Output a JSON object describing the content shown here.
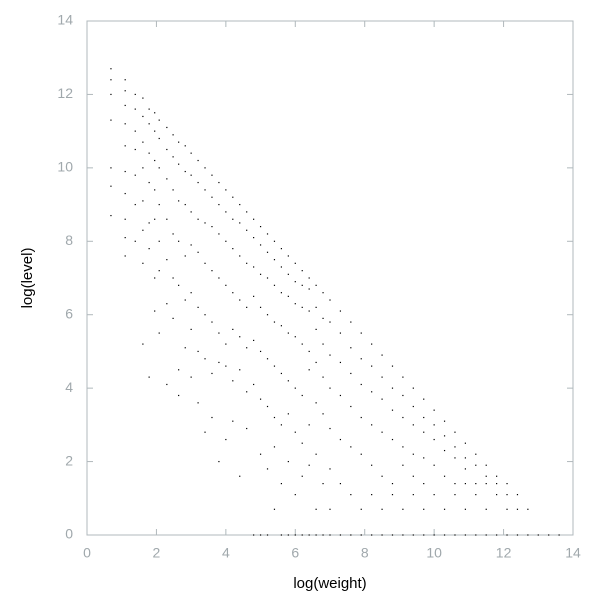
{
  "chart_data": {
    "type": "scatter",
    "xlabel": "log(weight)",
    "ylabel": "log(level)",
    "xlim": [
      0,
      14
    ],
    "ylim": [
      0,
      14
    ],
    "xticks": [
      0,
      2,
      4,
      6,
      8,
      10,
      12,
      14
    ],
    "yticks": [
      0,
      2,
      4,
      6,
      8,
      10,
      12,
      14
    ],
    "color": "#000000",
    "x": [
      0.69,
      0.69,
      0.69,
      0.69,
      0.69,
      0.69,
      0.69,
      1.1,
      1.1,
      1.1,
      1.1,
      1.1,
      1.1,
      1.1,
      1.1,
      1.1,
      1.1,
      1.39,
      1.39,
      1.39,
      1.39,
      1.39,
      1.39,
      1.39,
      1.61,
      1.61,
      1.61,
      1.61,
      1.61,
      1.61,
      1.61,
      1.61,
      1.79,
      1.79,
      1.79,
      1.79,
      1.79,
      1.79,
      1.79,
      1.95,
      1.95,
      1.95,
      1.95,
      1.95,
      1.95,
      1.95,
      2.08,
      2.08,
      2.08,
      2.08,
      2.08,
      2.08,
      2.08,
      2.3,
      2.3,
      2.3,
      2.3,
      2.3,
      2.3,
      2.3,
      2.48,
      2.48,
      2.48,
      2.48,
      2.48,
      2.48,
      2.64,
      2.64,
      2.64,
      2.64,
      2.64,
      2.64,
      2.64,
      2.83,
      2.83,
      2.83,
      2.83,
      2.83,
      2.83,
      3.0,
      3.0,
      3.0,
      3.0,
      3.0,
      3.0,
      3.0,
      3.2,
      3.2,
      3.2,
      3.2,
      3.2,
      3.2,
      3.2,
      3.4,
      3.4,
      3.4,
      3.4,
      3.4,
      3.4,
      3.4,
      3.6,
      3.6,
      3.6,
      3.6,
      3.6,
      3.6,
      3.6,
      3.8,
      3.8,
      3.8,
      3.8,
      3.8,
      3.8,
      3.8,
      4.0,
      4.0,
      4.0,
      4.0,
      4.0,
      4.0,
      4.0,
      4.2,
      4.2,
      4.2,
      4.2,
      4.2,
      4.2,
      4.2,
      4.4,
      4.4,
      4.4,
      4.4,
      4.4,
      4.4,
      4.4,
      4.6,
      4.6,
      4.6,
      4.6,
      4.6,
      4.6,
      4.6,
      4.8,
      4.8,
      4.8,
      4.8,
      4.8,
      4.8,
      4.8,
      5.0,
      5.0,
      5.0,
      5.0,
      5.0,
      5.0,
      5.0,
      5.0,
      5.2,
      5.2,
      5.2,
      5.2,
      5.2,
      5.2,
      5.2,
      5.2,
      5.4,
      5.4,
      5.4,
      5.4,
      5.4,
      5.4,
      5.4,
      5.4,
      5.6,
      5.6,
      5.6,
      5.6,
      5.6,
      5.6,
      5.6,
      5.6,
      5.8,
      5.8,
      5.8,
      5.8,
      5.8,
      5.8,
      5.8,
      5.8,
      6.0,
      6.0,
      6.0,
      6.0,
      6.0,
      6.0,
      6.0,
      6.0,
      6.2,
      6.2,
      6.2,
      6.2,
      6.2,
      6.2,
      6.2,
      6.2,
      6.4,
      6.4,
      6.4,
      6.4,
      6.4,
      6.4,
      6.4,
      6.4,
      6.6,
      6.6,
      6.6,
      6.6,
      6.6,
      6.6,
      6.6,
      6.6,
      6.8,
      6.8,
      6.8,
      6.8,
      6.8,
      6.8,
      6.8,
      7.0,
      7.0,
      7.0,
      7.0,
      7.0,
      7.0,
      7.0,
      7.0,
      7.3,
      7.3,
      7.3,
      7.3,
      7.3,
      7.3,
      7.3,
      7.6,
      7.6,
      7.6,
      7.6,
      7.6,
      7.6,
      7.6,
      7.9,
      7.9,
      7.9,
      7.9,
      7.9,
      7.9,
      7.9,
      8.2,
      8.2,
      8.2,
      8.2,
      8.2,
      8.2,
      8.2,
      8.5,
      8.5,
      8.5,
      8.5,
      8.5,
      8.5,
      8.5,
      8.8,
      8.8,
      8.8,
      8.8,
      8.8,
      8.8,
      8.8,
      9.1,
      9.1,
      9.1,
      9.1,
      9.1,
      9.1,
      9.1,
      9.4,
      9.4,
      9.4,
      9.4,
      9.4,
      9.4,
      9.4,
      9.7,
      9.7,
      9.7,
      9.7,
      9.7,
      9.7,
      9.7,
      10.0,
      10.0,
      10.0,
      10.0,
      10.0,
      10.0,
      10.3,
      10.3,
      10.3,
      10.3,
      10.3,
      10.3,
      10.6,
      10.6,
      10.6,
      10.6,
      10.6,
      10.6,
      10.9,
      10.9,
      10.9,
      10.9,
      10.9,
      10.9,
      11.2,
      11.2,
      11.2,
      11.2,
      11.2,
      11.5,
      11.5,
      11.5,
      11.5,
      11.5,
      11.8,
      11.8,
      11.8,
      11.8,
      12.1,
      12.1,
      12.1,
      12.1,
      12.4,
      12.4,
      12.4,
      12.7,
      12.7,
      13.0,
      13.3,
      13.6
    ],
    "values": [
      12.7,
      12.4,
      12.0,
      11.3,
      10.0,
      9.5,
      8.7,
      12.4,
      12.1,
      11.7,
      11.2,
      10.6,
      9.9,
      9.3,
      8.6,
      8.1,
      7.6,
      12.0,
      11.6,
      11.0,
      10.5,
      9.8,
      9.0,
      8.0,
      11.9,
      11.4,
      10.7,
      10.0,
      9.1,
      8.3,
      7.4,
      5.2,
      11.6,
      11.2,
      10.4,
      9.6,
      8.5,
      7.8,
      4.3,
      11.5,
      11.0,
      10.2,
      9.4,
      8.6,
      7.0,
      6.1,
      11.3,
      10.8,
      10.0,
      9.0,
      8.0,
      7.2,
      5.5,
      11.1,
      10.5,
      9.7,
      8.6,
      7.5,
      6.3,
      4.1,
      10.9,
      10.3,
      9.4,
      8.2,
      7.0,
      5.9,
      10.7,
      10.1,
      9.1,
      8.0,
      6.8,
      4.5,
      3.8,
      10.6,
      9.9,
      9.0,
      7.6,
      6.4,
      5.1,
      10.4,
      9.8,
      8.8,
      7.9,
      6.6,
      5.6,
      4.3,
      10.2,
      9.6,
      8.6,
      7.7,
      6.2,
      5.0,
      3.6,
      10.0,
      9.4,
      8.5,
      7.4,
      6.0,
      4.8,
      2.8,
      9.8,
      9.2,
      8.4,
      7.2,
      5.8,
      4.4,
      3.2,
      9.6,
      9.0,
      8.2,
      7.0,
      5.5,
      4.7,
      2.0,
      9.4,
      8.8,
      8.0,
      6.8,
      5.2,
      4.6,
      2.6,
      9.2,
      8.6,
      7.8,
      6.6,
      5.6,
      4.2,
      3.1,
      9.0,
      8.5,
      7.6,
      6.4,
      5.4,
      4.5,
      1.6,
      8.8,
      8.3,
      7.4,
      6.2,
      5.1,
      3.9,
      2.9,
      8.6,
      8.1,
      7.3,
      6.5,
      5.3,
      4.1,
      0,
      8.4,
      7.9,
      7.1,
      6.2,
      5.0,
      3.7,
      2.2,
      0,
      8.2,
      7.7,
      7.0,
      6.0,
      4.8,
      3.5,
      1.8,
      0,
      8.0,
      7.5,
      6.8,
      5.8,
      4.6,
      3.2,
      2.4,
      0.7,
      7.8,
      7.3,
      6.6,
      5.7,
      4.4,
      3.0,
      1.4,
      0,
      7.6,
      7.1,
      6.5,
      5.5,
      4.2,
      3.3,
      2.0,
      0,
      7.4,
      6.9,
      6.3,
      5.4,
      4.0,
      2.8,
      1.1,
      0,
      7.2,
      6.8,
      6.2,
      5.2,
      3.8,
      2.5,
      1.6,
      0,
      7.0,
      6.7,
      6.1,
      5.0,
      4.5,
      3.0,
      1.9,
      0,
      6.8,
      6.2,
      5.6,
      4.7,
      3.6,
      2.2,
      0.7,
      0,
      6.6,
      5.9,
      5.2,
      4.3,
      3.3,
      1.4,
      0,
      6.4,
      5.8,
      4.9,
      4.0,
      2.9,
      1.8,
      0.7,
      0,
      6.1,
      5.5,
      4.7,
      3.8,
      2.6,
      1.4,
      0,
      5.8,
      5.1,
      4.4,
      3.5,
      2.4,
      1.1,
      0,
      5.5,
      4.8,
      4.1,
      3.2,
      2.2,
      0.7,
      0,
      5.2,
      4.6,
      3.9,
      3.0,
      1.9,
      1.1,
      0,
      4.9,
      4.3,
      3.7,
      2.8,
      1.6,
      0.7,
      0,
      4.6,
      4.0,
      3.4,
      2.6,
      1.4,
      1.1,
      0,
      4.3,
      3.8,
      3.2,
      2.4,
      1.9,
      0.7,
      0,
      4.0,
      3.5,
      3.0,
      2.2,
      1.6,
      1.1,
      0,
      3.7,
      3.2,
      2.8,
      2.1,
      1.4,
      0.7,
      0,
      3.4,
      3.0,
      2.6,
      1.9,
      1.1,
      0,
      3.1,
      2.7,
      2.3,
      1.6,
      0.7,
      0,
      2.8,
      2.4,
      2.1,
      1.4,
      1.1,
      0,
      2.5,
      2.1,
      1.8,
      1.4,
      0.7,
      0,
      2.2,
      1.9,
      1.4,
      1.1,
      0,
      1.9,
      1.6,
      1.4,
      0.7,
      0,
      1.6,
      1.4,
      1.1,
      0,
      1.4,
      1.1,
      0.7,
      0,
      1.1,
      0.7,
      0,
      0.7,
      0,
      0,
      0,
      0
    ]
  }
}
